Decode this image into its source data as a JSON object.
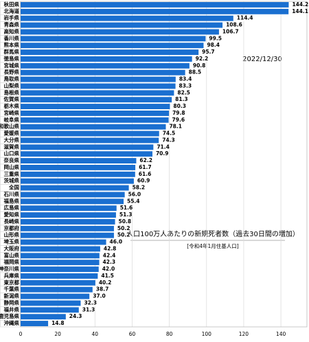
{
  "chart_data": {
    "type": "bar",
    "orientation": "horizontal",
    "categories": [
      "秋田県",
      "北海道",
      "岩手県",
      "青森県",
      "高知県",
      "香川県",
      "熊本県",
      "群馬県",
      "徳島県",
      "宮城県",
      "長野県",
      "鳥取県",
      "山梨県",
      "島根県",
      "佐賀県",
      "栃木県",
      "宮崎県",
      "岐阜県",
      "和歌山県",
      "愛媛県",
      "大分県",
      "滋賀県",
      "山口県",
      "奈良県",
      "岡山県",
      "三重県",
      "茨城県",
      "全国",
      "石川県",
      "福島県",
      "広島県",
      "愛知県",
      "長崎県",
      "京都府",
      "山形県",
      "埼玉県",
      "大阪府",
      "富山県",
      "福岡県",
      "神奈川県",
      "兵庫県",
      "東京都",
      "千葉県",
      "新潟県",
      "静岡県",
      "福井県",
      "鹿児島県",
      "沖縄県"
    ],
    "values": [
      144.2,
      144.1,
      114.4,
      108.6,
      106.7,
      99.5,
      98.4,
      95.7,
      92.2,
      90.8,
      88.5,
      83.4,
      83.3,
      82.5,
      81.3,
      80.3,
      79.8,
      79.6,
      78.1,
      74.5,
      74.3,
      71.4,
      70.9,
      62.2,
      61.7,
      61.6,
      60.9,
      58.2,
      56.0,
      55.4,
      51.6,
      51.3,
      50.8,
      50.2,
      50.2,
      46.0,
      42.8,
      42.4,
      42.3,
      42.0,
      41.5,
      40.2,
      38.7,
      37.0,
      32.3,
      31.3,
      24.3,
      14.8
    ],
    "value_labels": [
      "144.2",
      "144.1",
      "114.4",
      "108.6",
      "106.7",
      "99.5",
      "98.4",
      "95.7",
      "92.2",
      "90.8",
      "88.5",
      "83.4",
      "83.3",
      "82.5",
      "81.3",
      "80.3",
      "79.8",
      "79.6",
      "78.1",
      "74.5",
      "74.3",
      "71.4",
      "70.9",
      "62.2",
      "61.7",
      "61.6",
      "60.9",
      "58.2",
      "56.0",
      "55.4",
      "51.6",
      "51.3",
      "50.8",
      "50.2",
      "50.2",
      "46.0",
      "42.8",
      "42.4",
      "42.3",
      "42.0",
      "41.5",
      "40.2",
      "38.7",
      "37.0",
      "32.3",
      "31.3",
      "24.3",
      "14.8"
    ],
    "color": "#1a6fd0",
    "xlim": [
      0,
      154
    ],
    "xticks": [
      0,
      20,
      40,
      60,
      80,
      100,
      120,
      140
    ],
    "grid": true,
    "annotations": [
      "2022/12/30",
      "人口100万人あたりの新規死者数（過去30日間の増加）",
      "[令和4年1月住基人口]"
    ]
  }
}
